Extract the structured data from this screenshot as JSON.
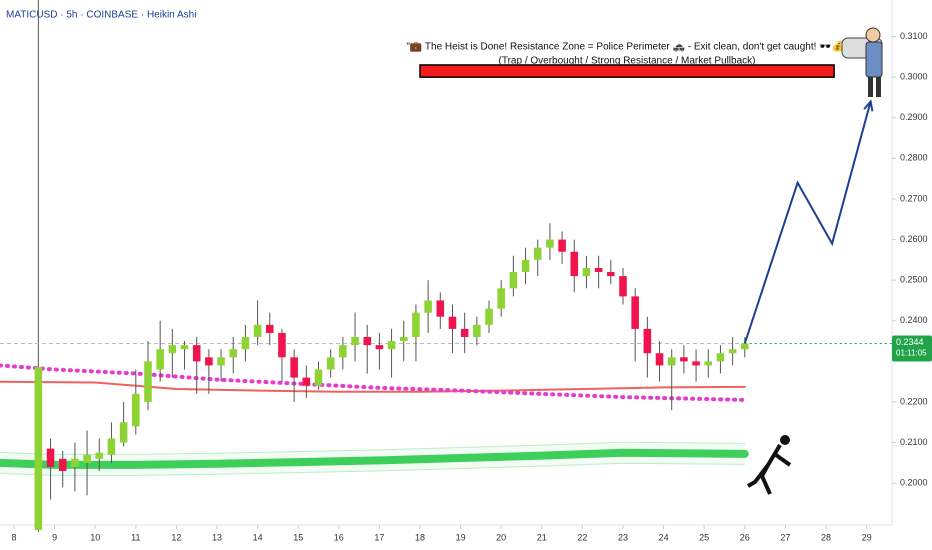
{
  "chart_data": {
    "type": "candlestick",
    "title": "MATICUSD · 5h · COINBASE · Heikin Ashi",
    "annotation": "\"💼 The Heist is Done! Resistance Zone = Police Perimeter 🚓 - Exit clean, don't get caught! 🕶️💰\"",
    "annotation_sub": "(Trap / Overbought / Strong Resistance / Market Pullback)",
    "x": [
      8.6,
      8.9,
      9.2,
      9.5,
      9.8,
      10.1,
      10.4,
      10.7,
      11.0,
      11.3,
      11.6,
      11.9,
      12.2,
      12.5,
      12.8,
      13.1,
      13.4,
      13.7,
      14.0,
      14.3,
      14.6,
      14.9,
      15.2,
      15.5,
      15.8,
      16.1,
      16.4,
      16.7,
      17.0,
      17.3,
      17.6,
      17.9,
      18.2,
      18.5,
      18.8,
      19.1,
      19.4,
      19.7,
      20.0,
      20.3,
      20.6,
      20.9,
      21.2,
      21.5,
      21.8,
      22.1,
      22.4,
      22.7,
      23.0,
      23.3,
      23.6,
      23.9,
      24.2,
      24.5,
      24.8,
      25.1,
      25.4,
      25.7,
      26.0
    ],
    "open": [
      0.1885,
      0.2085,
      0.206,
      0.204,
      0.205,
      0.206,
      0.207,
      0.21,
      0.214,
      0.22,
      0.228,
      0.232,
      0.233,
      0.234,
      0.231,
      0.229,
      0.231,
      0.233,
      0.236,
      0.239,
      0.237,
      0.231,
      0.226,
      0.224,
      0.228,
      0.231,
      0.234,
      0.236,
      0.234,
      0.233,
      0.235,
      0.236,
      0.242,
      0.245,
      0.241,
      0.238,
      0.236,
      0.239,
      0.243,
      0.248,
      0.252,
      0.255,
      0.258,
      0.26,
      0.257,
      0.251,
      0.253,
      0.252,
      0.251,
      0.246,
      0.238,
      0.232,
      0.229,
      0.231,
      0.23,
      0.229,
      0.23,
      0.232,
      0.233
    ],
    "high": [
      0.229,
      0.211,
      0.208,
      0.21,
      0.213,
      0.211,
      0.215,
      0.22,
      0.228,
      0.235,
      0.24,
      0.238,
      0.235,
      0.236,
      0.233,
      0.233,
      0.236,
      0.239,
      0.245,
      0.242,
      0.238,
      0.233,
      0.229,
      0.23,
      0.233,
      0.236,
      0.242,
      0.239,
      0.237,
      0.238,
      0.24,
      0.244,
      0.25,
      0.247,
      0.244,
      0.242,
      0.241,
      0.245,
      0.25,
      0.256,
      0.258,
      0.26,
      0.264,
      0.262,
      0.26,
      0.256,
      0.256,
      0.255,
      0.253,
      0.248,
      0.241,
      0.235,
      0.233,
      0.234,
      0.233,
      0.233,
      0.234,
      0.236,
      0.236
    ],
    "low": [
      0.188,
      0.196,
      0.199,
      0.198,
      0.197,
      0.203,
      0.205,
      0.209,
      0.212,
      0.218,
      0.225,
      0.226,
      0.228,
      0.222,
      0.222,
      0.225,
      0.227,
      0.23,
      0.234,
      0.234,
      0.225,
      0.22,
      0.221,
      0.223,
      0.226,
      0.228,
      0.23,
      0.227,
      0.228,
      0.226,
      0.23,
      0.23,
      0.237,
      0.238,
      0.232,
      0.232,
      0.234,
      0.237,
      0.241,
      0.246,
      0.249,
      0.251,
      0.255,
      0.254,
      0.247,
      0.248,
      0.248,
      0.249,
      0.244,
      0.23,
      0.226,
      0.225,
      0.218,
      0.227,
      0.225,
      0.226,
      0.227,
      0.229,
      0.231
    ],
    "close": [
      0.2286,
      0.204,
      0.203,
      0.206,
      0.207,
      0.2075,
      0.211,
      0.215,
      0.222,
      0.23,
      0.233,
      0.234,
      0.234,
      0.23,
      0.229,
      0.231,
      0.233,
      0.236,
      0.239,
      0.237,
      0.231,
      0.226,
      0.224,
      0.228,
      0.231,
      0.234,
      0.236,
      0.234,
      0.233,
      0.235,
      0.236,
      0.242,
      0.245,
      0.241,
      0.238,
      0.236,
      0.239,
      0.243,
      0.248,
      0.252,
      0.255,
      0.258,
      0.26,
      0.257,
      0.251,
      0.253,
      0.252,
      0.251,
      0.246,
      0.238,
      0.232,
      0.229,
      0.231,
      0.23,
      0.229,
      0.23,
      0.232,
      0.233,
      0.2344
    ],
    "up_color": "#8ed334",
    "down_color": "#f0134d",
    "lines": [
      {
        "color": "#f0625d",
        "width": 2,
        "x": [
          7.655,
          10,
          12,
          14,
          16,
          18,
          20,
          22,
          24,
          26
        ],
        "values": [
          0.225,
          0.2248,
          0.2232,
          0.2228,
          0.2225,
          0.2225,
          0.2228,
          0.2232,
          0.2236,
          0.2237
        ]
      },
      {
        "color": "#e53bd0",
        "width": 4,
        "dotted": true,
        "x": [
          7.655,
          9,
          11,
          13,
          15,
          17,
          19,
          21,
          23,
          26
        ],
        "values": [
          0.229,
          0.228,
          0.227,
          0.2255,
          0.2245,
          0.2235,
          0.2228,
          0.222,
          0.2212,
          0.2205
        ]
      },
      {
        "color": "#3ecf5a",
        "width": 8,
        "band": true,
        "x": [
          7.655,
          9,
          11,
          13,
          15,
          17,
          19,
          21,
          23,
          26
        ],
        "values": [
          0.205,
          0.2045,
          0.2045,
          0.2048,
          0.2052,
          0.2056,
          0.2062,
          0.2068,
          0.2075,
          0.2072
        ]
      }
    ],
    "projection": {
      "color": "#1c3f94",
      "x": [
        26,
        27.3,
        28.15,
        29.1
      ],
      "values": [
        0.2344,
        0.274,
        0.259,
        0.294
      ]
    },
    "zone": {
      "color": "#f21d1d",
      "x": [
        18,
        28.2
      ],
      "y": [
        0.3,
        0.303
      ]
    },
    "marker_x": 8.6,
    "last_price": 0.2344,
    "countdown": "01:11:05",
    "xlim": [
      7.655,
      29.626
    ],
    "ylim": [
      0.1897,
      0.319
    ],
    "xticks": [
      8,
      9,
      10,
      11,
      12,
      13,
      14,
      15,
      16,
      17,
      18,
      19,
      20,
      21,
      22,
      23,
      24,
      25,
      26,
      27,
      28,
      29
    ],
    "yticks": [
      {
        "value": 0.2,
        "label": "0.2000"
      },
      {
        "value": 0.21,
        "label": "0.2100"
      },
      {
        "value": 0.22,
        "label": "0.2200"
      },
      {
        "value": 0.24,
        "label": "0.2400"
      },
      {
        "value": 0.25,
        "label": "0.2500"
      },
      {
        "value": 0.26,
        "label": "0.2600"
      },
      {
        "value": 0.27,
        "label": "0.2700"
      },
      {
        "value": 0.28,
        "label": "0.2800"
      },
      {
        "value": 0.29,
        "label": "0.2900"
      },
      {
        "value": 0.3,
        "label": "0.3000"
      },
      {
        "value": 0.31,
        "label": "0.3100"
      }
    ]
  }
}
